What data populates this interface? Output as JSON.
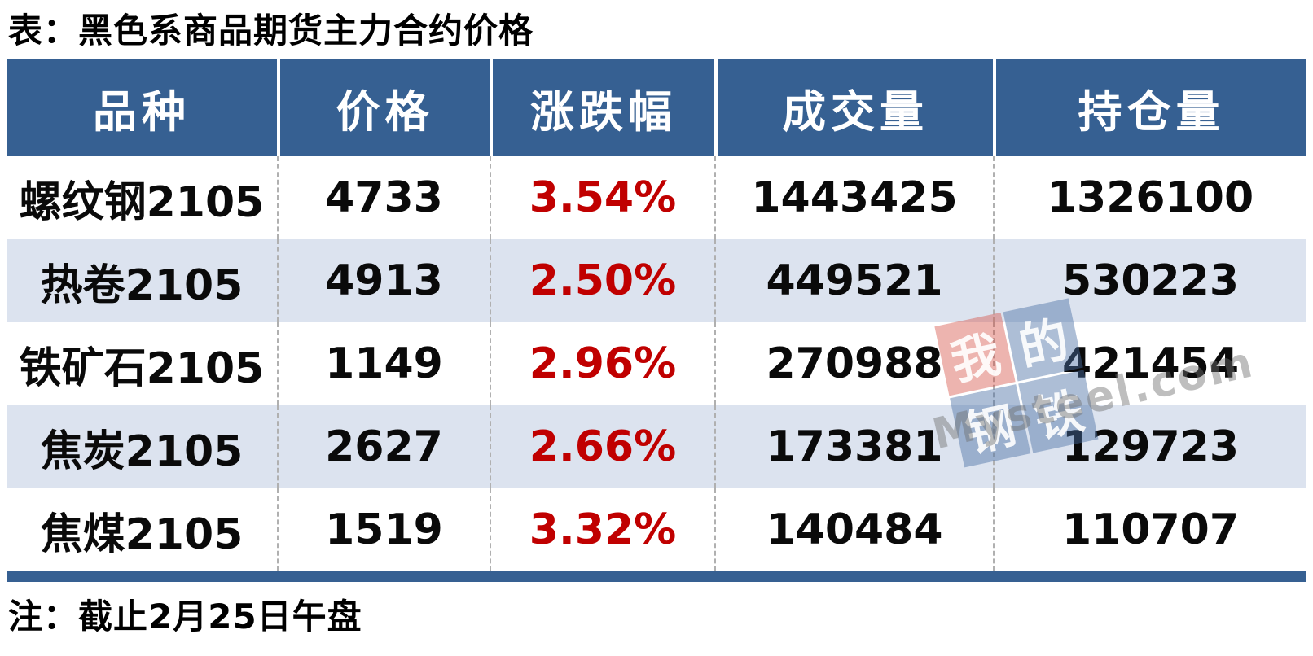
{
  "title": "表：黑色系商品期货主力合约价格",
  "note": "注：截止2月25日午盘",
  "watermark": {
    "logo_chars": [
      "我",
      "的",
      "钢",
      "铁"
    ],
    "site": "Mysteel.com"
  },
  "colors": {
    "header_bg": "#366092",
    "header_text": "#FFFFFF",
    "row_alt_bg": "#DCE3EF",
    "row_bg": "#FFFFFF",
    "body_text": "#0A0A0A",
    "change_red": "#C00000",
    "divider_dashed": "#B0B0B0",
    "bottom_bar": "#366092",
    "watermark_red": "#D34C41",
    "watermark_blue": "#4A6FA5"
  },
  "chart_data": {
    "type": "table",
    "title": "表：黑色系商品期货主力合约价格",
    "columns": [
      "品种",
      "价格",
      "涨跌幅",
      "成交量",
      "持仓量"
    ],
    "rows": [
      [
        "螺纹钢2105",
        4733,
        "3.54%",
        1443425,
        1326100
      ],
      [
        "热卷2105",
        4913,
        "2.50%",
        449521,
        530223
      ],
      [
        "铁矿石2105",
        1149,
        "2.96%",
        270988,
        421454
      ],
      [
        "焦炭2105",
        2627,
        "2.66%",
        173381,
        129723
      ],
      [
        "焦煤2105",
        1519,
        "3.32%",
        140484,
        110707
      ]
    ],
    "note": "注：截止2月25日午盘",
    "layout_hints": {
      "change_column_color": "#C00000",
      "header_style": "white-serif-on-blue",
      "row_striping": "white / light-blue alternating",
      "column_dividers": "dashed gray in body, solid white in header"
    }
  }
}
